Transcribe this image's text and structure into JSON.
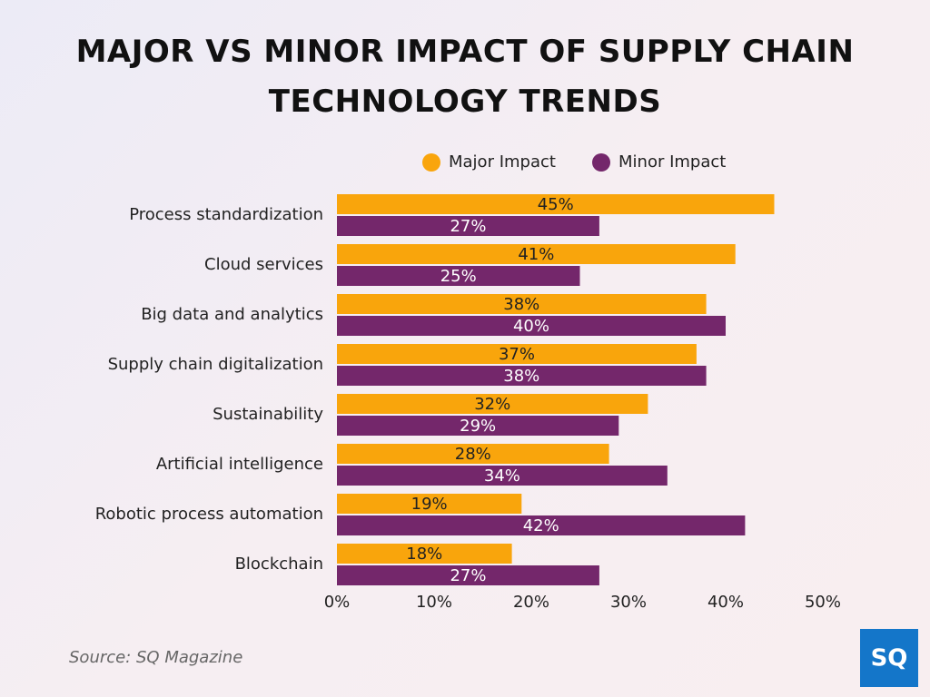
{
  "chart_data": {
    "type": "bar",
    "orientation": "horizontal",
    "title": "MAJOR VS MINOR IMPACT OF SUPPLY CHAIN TECHNOLOGY TRENDS",
    "categories": [
      "Process standardization",
      "Cloud services",
      "Big data and analytics",
      "Supply chain digitalization",
      "Sustainability",
      "Artificial intelligence",
      "Robotic process automation",
      "Blockchain"
    ],
    "series": [
      {
        "name": "Major Impact",
        "color": "#f9a50c",
        "values": [
          45,
          41,
          38,
          37,
          32,
          28,
          19,
          18
        ],
        "value_labels": [
          "45%",
          "41%",
          "38%",
          "37%",
          "32%",
          "28%",
          "19%",
          "18%"
        ]
      },
      {
        "name": "Minor Impact",
        "color": "#74276b",
        "values": [
          27,
          25,
          40,
          38,
          29,
          34,
          42,
          27
        ],
        "value_labels": [
          "27%",
          "25%",
          "40%",
          "38%",
          "29%",
          "34%",
          "42%",
          "27%"
        ]
      }
    ],
    "xlim": [
      0,
      50
    ],
    "xticks": [
      {
        "value": 0,
        "label": "0%"
      },
      {
        "value": 10,
        "label": "10%"
      },
      {
        "value": 20,
        "label": "20%"
      },
      {
        "value": 30,
        "label": "30%"
      },
      {
        "value": 40,
        "label": "40%"
      },
      {
        "value": 50,
        "label": "50%"
      }
    ],
    "legend_position": "top",
    "source": "Source: SQ Magazine",
    "logo": "SQ"
  }
}
